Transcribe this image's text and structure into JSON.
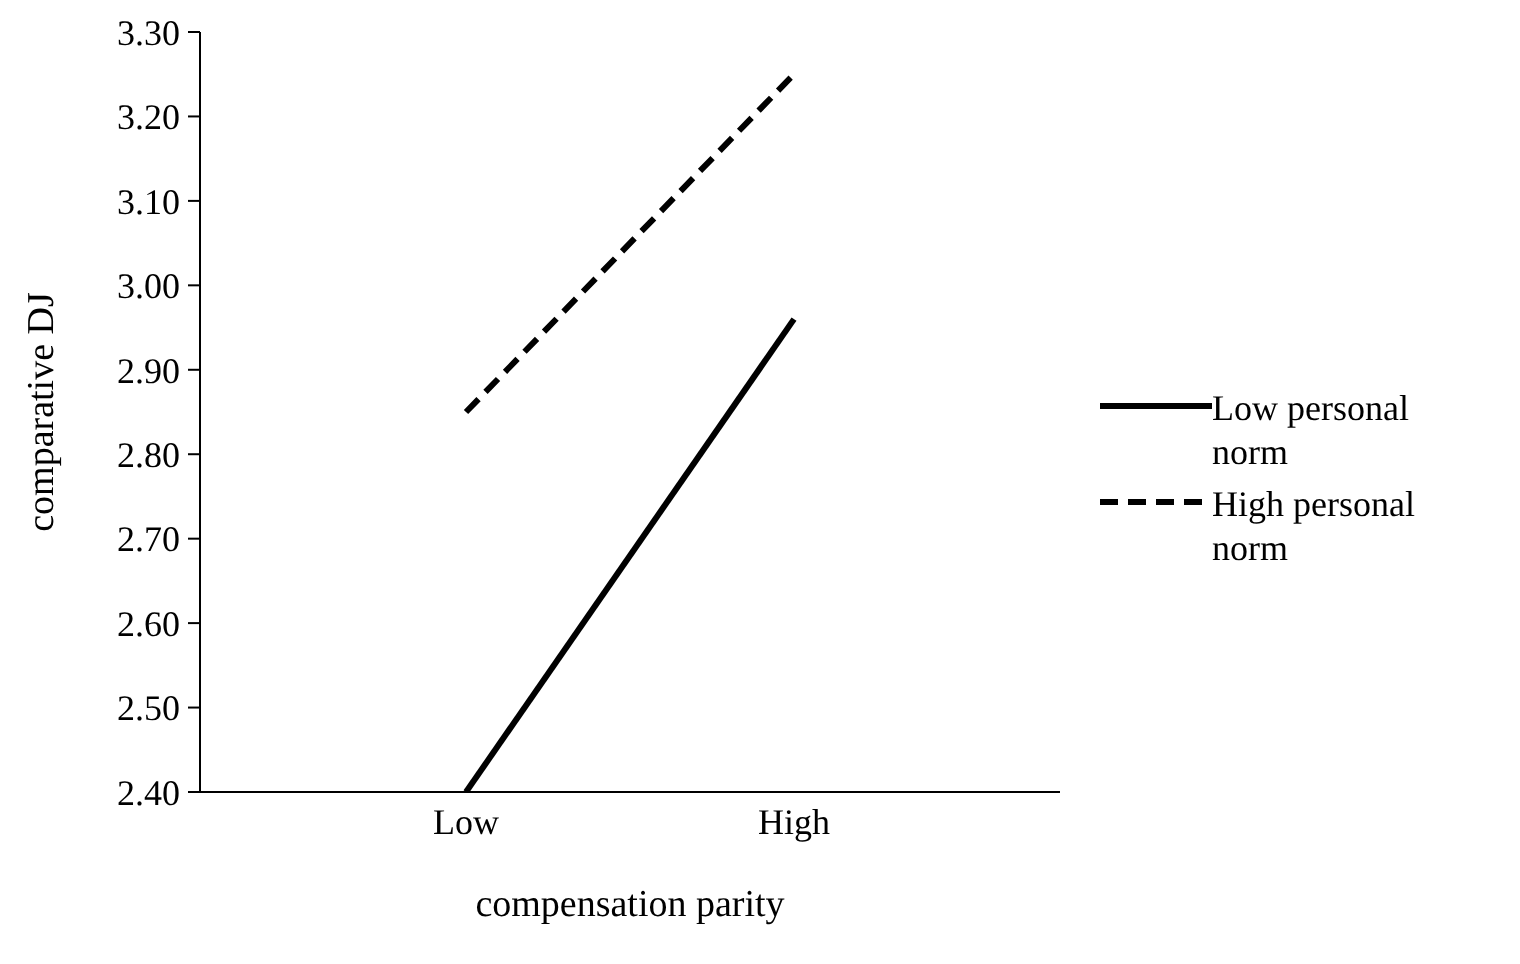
{
  "chart_data": {
    "type": "line",
    "xlabel": "compensation parity",
    "ylabel": "comparative DJ",
    "categories": [
      "Low",
      "High"
    ],
    "series": [
      {
        "name": "Low personal norm",
        "color": "#000000",
        "line_style": "solid",
        "values": [
          2.4,
          2.96
        ]
      },
      {
        "name": "High personal norm",
        "color": "#000000",
        "line_style": "dashed",
        "values": [
          2.85,
          3.25
        ]
      }
    ],
    "ylim": [
      2.4,
      3.3
    ],
    "yticks": [
      {
        "value": 2.4,
        "label": "2.40"
      },
      {
        "value": 2.5,
        "label": "2.50"
      },
      {
        "value": 2.6,
        "label": "2.60"
      },
      {
        "value": 2.7,
        "label": "2.70"
      },
      {
        "value": 2.8,
        "label": "2.80"
      },
      {
        "value": 2.9,
        "label": "2.90"
      },
      {
        "value": 3.0,
        "label": "3.00"
      },
      {
        "value": 3.1,
        "label": "3.10"
      },
      {
        "value": 3.2,
        "label": "3.20"
      },
      {
        "value": 3.3,
        "label": "3.30"
      }
    ],
    "grid": false,
    "legend": "right",
    "marker": "none"
  }
}
